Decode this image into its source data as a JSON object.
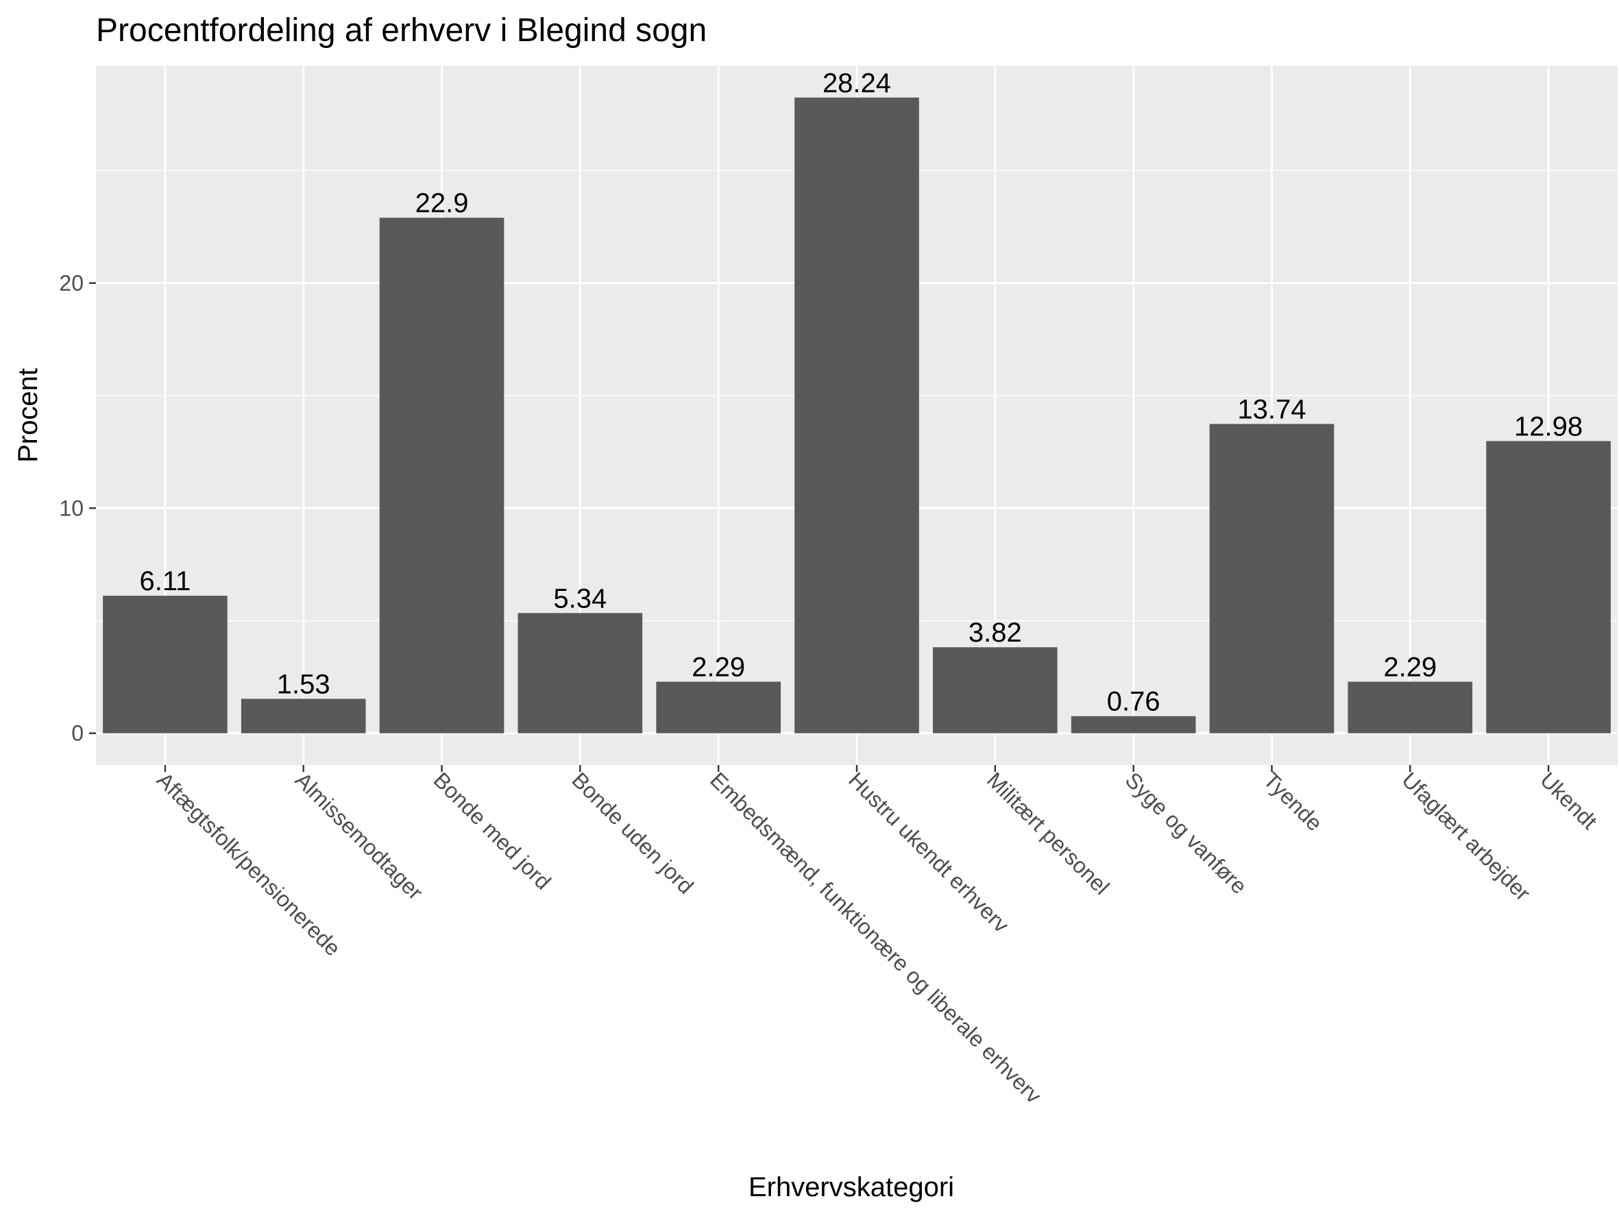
{
  "chart_data": {
    "type": "bar",
    "title": "Procentfordeling af erhverv i Blegind sogn",
    "xlabel": "Erhvervskategori",
    "ylabel": "Procent",
    "categories": [
      "Aftægtsfolk/pensionerede",
      "Almissemodtager",
      "Bonde med jord",
      "Bonde uden jord",
      "Embedsmænd, funktionære og liberale erhverv",
      "Hustru ukendt erhverv",
      "Militært personel",
      "Syge og vanføre",
      "Tyende",
      "Ufaglært arbejder",
      "Ukendt"
    ],
    "values": [
      6.11,
      1.53,
      22.9,
      5.34,
      2.29,
      28.24,
      3.82,
      0.76,
      13.74,
      2.29,
      12.98
    ],
    "value_labels": [
      "6.11",
      "1.53",
      "22.9",
      "5.34",
      "2.29",
      "28.24",
      "3.82",
      "0.76",
      "13.74",
      "2.29",
      "12.98"
    ],
    "y_ticks": [
      0,
      10,
      20
    ],
    "ylim": [
      -1.41,
      29.65
    ],
    "grid": true,
    "legend": "none",
    "colors": {
      "bar": "#595959",
      "panel": "#ebebeb",
      "grid": "#ffffff",
      "tick_text": "#4d4d4d",
      "tick_mark": "#333333"
    }
  }
}
